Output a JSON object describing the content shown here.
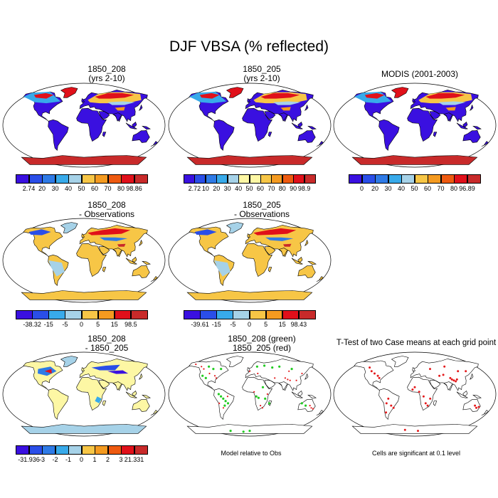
{
  "main_title": "DJF VBSA (% reflected)",
  "colors": {
    "scale": [
      "#3a10e0",
      "#2a4ee8",
      "#2e7ae6",
      "#38aaea",
      "#a6d2e8",
      "#fdf7a4",
      "#f7c646",
      "#f49a20",
      "#ee5a10",
      "#e0101a",
      "#c82a2a"
    ],
    "green": "#22cc22",
    "red": "#e41a1c",
    "outline": "#000000"
  },
  "panels": [
    {
      "id": "p1",
      "title1": "1850_208",
      "title2": "(yrs 2-10)",
      "cbar_labels": [
        "2.74",
        "20",
        "30",
        "40",
        "50",
        "60",
        "70",
        "80",
        "98.86"
      ],
      "style": "abs"
    },
    {
      "id": "p2",
      "title1": "1850_205",
      "title2": "(yrs 2-10)",
      "cbar_labels": [
        "2.72",
        "10",
        "20",
        "30",
        "40",
        "50",
        "60",
        "70",
        "80",
        "90",
        "98.9"
      ],
      "style": "abs"
    },
    {
      "id": "p3",
      "title1": "MODIS (2001-2003)",
      "title2": "",
      "cbar_labels": [
        "0",
        "20",
        "30",
        "40",
        "50",
        "60",
        "70",
        "80",
        "96.89"
      ],
      "style": "abs"
    },
    {
      "id": "p4",
      "title1": "1850_208",
      "title2": "- Observations",
      "cbar_labels": [
        "-38.32",
        "-15",
        "-5",
        "0",
        "5",
        "15",
        "98.5"
      ],
      "style": "diff"
    },
    {
      "id": "p5",
      "title1": "1850_205",
      "title2": "- Observations",
      "cbar_labels": [
        "-39.61",
        "-15",
        "-5",
        "0",
        "5",
        "15",
        "98.43"
      ],
      "style": "diff"
    },
    {
      "id": "p6",
      "title1": "1850_208",
      "title2": "- 1850_205",
      "cbar_labels": [
        "-31.936",
        "-3",
        "-2",
        "-1",
        "0",
        "1",
        "2",
        "3",
        "21.331"
      ],
      "style": "diff2"
    },
    {
      "id": "p7",
      "title1": "1850_208 (green)",
      "title2": "1850_205 (red)",
      "note": "Model relative to Obs",
      "style": "points"
    },
    {
      "id": "p8",
      "title1": "T-Test of two Case means at each grid point",
      "title2": "",
      "note": "Cells are significant at 0.1 level",
      "style": "ttest"
    }
  ]
}
